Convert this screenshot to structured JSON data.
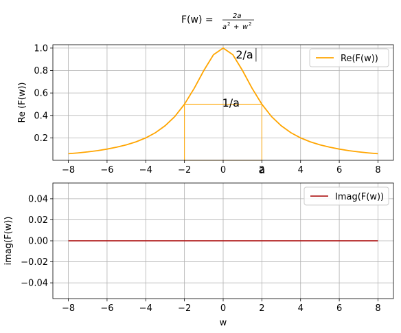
{
  "figure": {
    "title_prefix": "F(w) = ",
    "title_numerator": "2a",
    "title_denominator_base1": "a",
    "title_denominator_base2": "w",
    "title_denominator_exp": "2",
    "title_denominator_plus": "+"
  },
  "chart_data": [
    {
      "type": "line",
      "xlabel": "",
      "ylabel": "Re (F(w))",
      "xlim": [
        -8.8,
        8.8
      ],
      "ylim": [
        0.0,
        1.03
      ],
      "grid": true,
      "legend_position": "upper right",
      "xticks": [
        -8,
        -6,
        -4,
        -2,
        0,
        2,
        4,
        6,
        8
      ],
      "xtick_labels": [
        "−8",
        "−6",
        "−4",
        "−2",
        "0",
        "2",
        "4",
        "6",
        "8"
      ],
      "yticks": [
        0.2,
        0.4,
        0.6,
        0.8,
        1.0
      ],
      "ytick_labels": [
        "0.2",
        "0.4",
        "0.6",
        "0.8",
        "1.0"
      ],
      "series": [
        {
          "name": "Re(F(w))",
          "color": "#ffa500",
          "x": [
            -8,
            -7.5,
            -7,
            -6.5,
            -6,
            -5.5,
            -5,
            -4.5,
            -4,
            -3.5,
            -3,
            -2.5,
            -2,
            -1.5,
            -1,
            -0.5,
            0,
            0.5,
            1,
            1.5,
            2,
            2.5,
            3,
            3.5,
            4,
            4.5,
            5,
            5.5,
            6,
            6.5,
            7,
            7.5,
            8
          ],
          "y": [
            0.059,
            0.066,
            0.075,
            0.086,
            0.1,
            0.117,
            0.138,
            0.165,
            0.2,
            0.246,
            0.308,
            0.39,
            0.5,
            0.64,
            0.8,
            0.941,
            1.0,
            0.941,
            0.8,
            0.64,
            0.5,
            0.39,
            0.308,
            0.246,
            0.2,
            0.165,
            0.138,
            0.117,
            0.1,
            0.086,
            0.075,
            0.066,
            0.059
          ]
        }
      ],
      "annotations": [
        {
          "text": "2/a",
          "x": 0.65,
          "y": 0.945
        },
        {
          "text": "1/a",
          "x": -0.05,
          "y": 0.515
        },
        {
          "text": "a",
          "x": 2.0,
          "y": -0.08
        }
      ],
      "rectangle": {
        "x0": -2,
        "x1": 2,
        "y0": 0.0,
        "y1": 0.5,
        "color": "#ffa500"
      },
      "marker_line": {
        "x": 1.7,
        "y0": 0.88,
        "y1": 1.0
      }
    },
    {
      "type": "line",
      "xlabel": "w",
      "ylabel": "imag(F(w))",
      "xlim": [
        -8.8,
        8.8
      ],
      "ylim": [
        -0.055,
        0.055
      ],
      "grid": true,
      "legend_position": "upper right",
      "xticks": [
        -8,
        -6,
        -4,
        -2,
        0,
        2,
        4,
        6,
        8
      ],
      "xtick_labels": [
        "−8",
        "−6",
        "−4",
        "−2",
        "0",
        "2",
        "4",
        "6",
        "8"
      ],
      "yticks": [
        -0.04,
        -0.02,
        0.0,
        0.02,
        0.04
      ],
      "ytick_labels": [
        "−0.04",
        "−0.02",
        "0.00",
        "0.02",
        "0.04"
      ],
      "series": [
        {
          "name": "Imag(F(w))",
          "color": "#b22222",
          "x": [
            -8,
            8
          ],
          "y": [
            0.0,
            0.0
          ]
        }
      ]
    }
  ]
}
